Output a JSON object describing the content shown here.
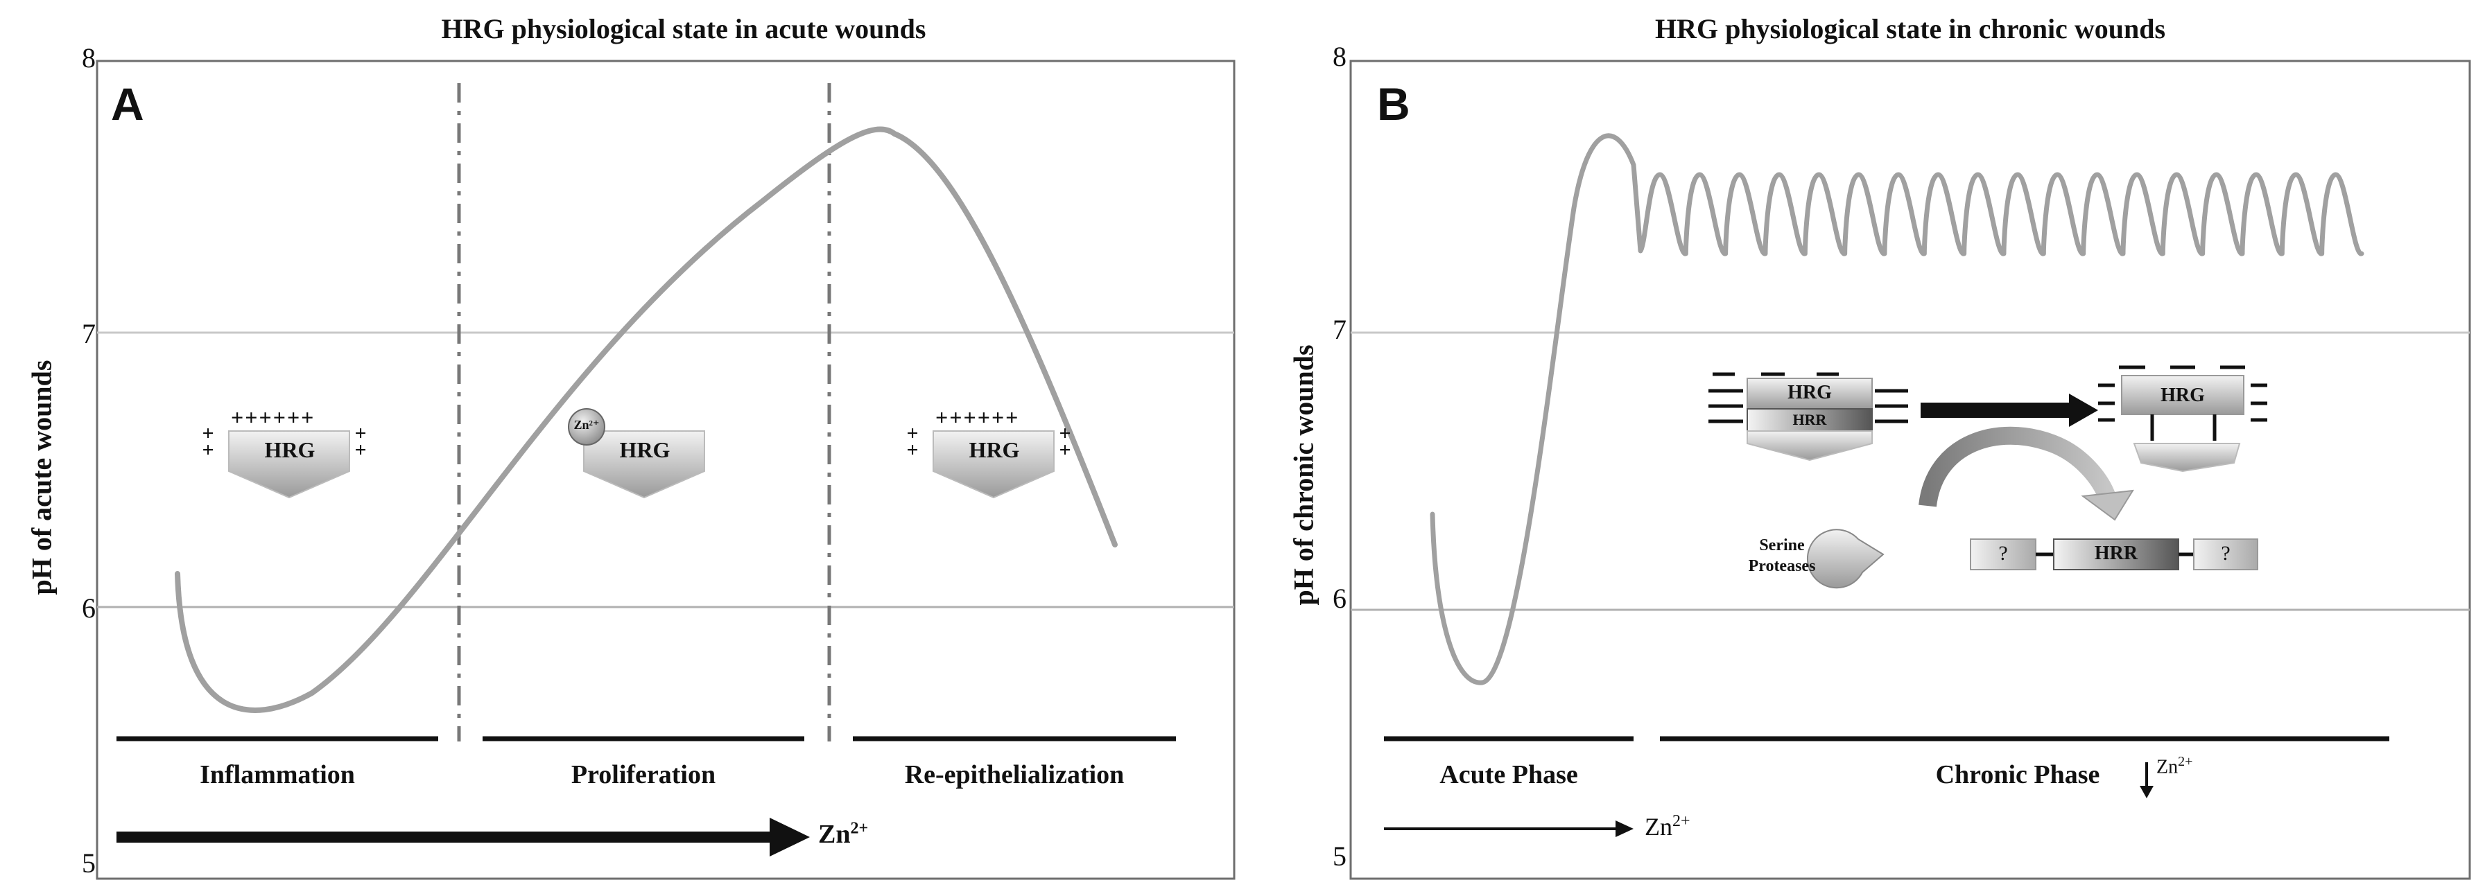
{
  "panel_a": {
    "title": "HRG physiological state in acute wounds",
    "letter": "A",
    "ylabel": "pH of acute wounds",
    "ticks": [
      "8",
      "7",
      "6",
      "5"
    ],
    "phases": [
      "Inflammation",
      "Proliferation",
      "Re-epithelialization"
    ],
    "zn_label": "Zn",
    "zn_sup": "2+",
    "hrg_label": "HRG",
    "zn_bubble": "Zn²⁺",
    "plus_row": "++++++",
    "plus_col": "+\n+"
  },
  "panel_b": {
    "title": "HRG physiological state in chronic wounds",
    "letter": "B",
    "ylabel": "pH of chronic wounds",
    "ticks": [
      "8",
      "7",
      "6",
      "5"
    ],
    "phases": [
      "Acute Phase",
      "Chronic Phase"
    ],
    "zn_label": "Zn",
    "zn_sup": "2+",
    "hrg_label": "HRG",
    "hrr_label": "HRR",
    "unknown_label": "?",
    "protease_line1": "Serine",
    "protease_line2": "Proteases"
  },
  "colors": {
    "curve": "#a0a0a0",
    "frame": "#6e6e6e",
    "grid": "#c8c8c8",
    "dashdot": "#777777"
  }
}
